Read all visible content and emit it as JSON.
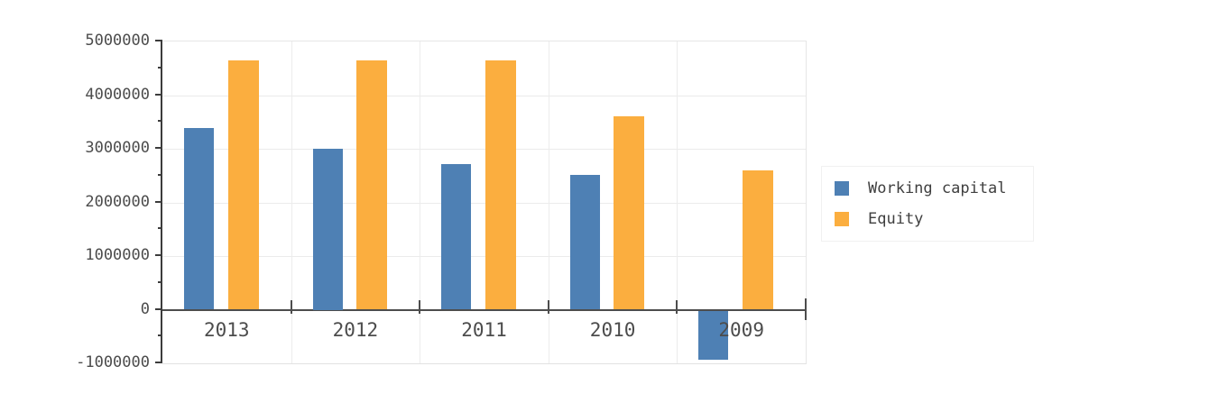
{
  "chart_data": {
    "type": "bar",
    "title": "",
    "categories": [
      "2013",
      "2012",
      "2011",
      "2010",
      "2009"
    ],
    "series": [
      {
        "name": "Working capital",
        "color": "#4e80b4",
        "values": [
          3380000,
          3000000,
          2720000,
          2510000,
          -910000
        ]
      },
      {
        "name": "Equity",
        "color": "#fbae3f",
        "values": [
          4640000,
          4640000,
          4640000,
          3600000,
          2600000
        ]
      }
    ],
    "xlabel": "",
    "ylabel": "",
    "ylim": [
      -1000000,
      5000000
    ],
    "ytick_step": 1000000,
    "ytick_minor_step": 500000,
    "ytick_labels": [
      "5000000",
      "4000000",
      "3000000",
      "2000000",
      "1000000",
      "0",
      "-1000000"
    ],
    "grid": true,
    "legend_position": "right",
    "axis_color": "#3c3c3c",
    "zero_line_color": "#4d4d4d",
    "grid_color": "#ebebeb",
    "label_color": "#4c4c4c"
  }
}
